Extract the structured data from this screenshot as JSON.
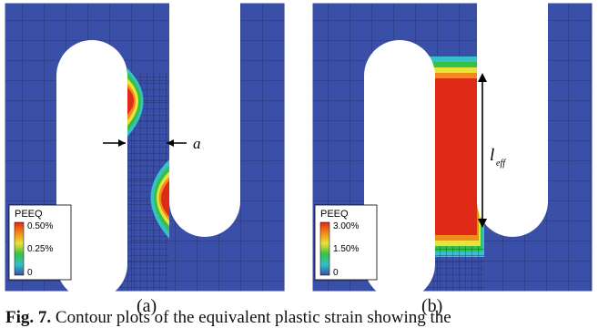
{
  "figure": {
    "panels": [
      {
        "id": "a",
        "panel_label": "(a)",
        "legend": {
          "title": "PEEQ",
          "ticks": [
            "0.50%",
            "0.25%",
            "0"
          ]
        },
        "annotation": "a"
      },
      {
        "id": "b",
        "panel_label": "(b)",
        "legend": {
          "title": "PEEQ",
          "ticks": [
            "3.00%",
            "1.50%",
            "0"
          ]
        },
        "annotation_main": "l",
        "annotation_sub": "eff"
      }
    ],
    "caption": {
      "label": "Fig. 7.",
      "text": "Contour plots of the equivalent plastic strain showing the"
    },
    "colors": {
      "background_mesh": "#3a4fa8",
      "mesh_line": "#1e2a66",
      "red": "#e02a18",
      "orange": "#f08a1a",
      "yellow": "#e8e23a",
      "green": "#36c046",
      "cyan": "#36c0c8"
    }
  }
}
